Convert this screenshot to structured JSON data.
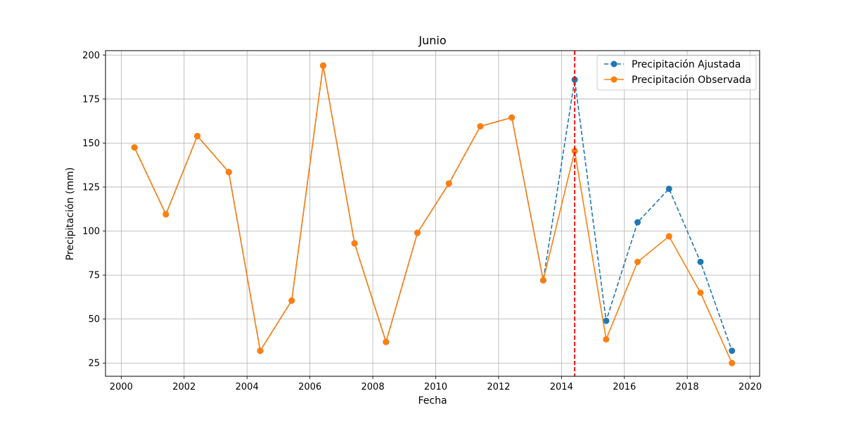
{
  "chart_data": {
    "type": "line",
    "title": "Junio",
    "xlabel": "Fecha",
    "ylabel": "Precipitación (mm)",
    "x": [
      2000.42,
      2001.42,
      2002.42,
      2003.42,
      2004.42,
      2005.42,
      2006.42,
      2007.42,
      2008.42,
      2009.42,
      2010.42,
      2011.42,
      2012.42,
      2013.42,
      2014.42,
      2015.42,
      2016.42,
      2017.42,
      2018.42,
      2019.42
    ],
    "series": [
      {
        "name": "Precipitación Ajustada",
        "color": "#1f77b4",
        "style": "dashed",
        "values": [
          147.5,
          109.5,
          154,
          133.5,
          32,
          60.5,
          194,
          93,
          37,
          99,
          127,
          159.5,
          164.5,
          72,
          186,
          49,
          105,
          124,
          82.5,
          32
        ]
      },
      {
        "name": "Precipitación Observada",
        "color": "#ff7f0e",
        "style": "solid",
        "values": [
          147.5,
          109.5,
          154,
          133.5,
          32,
          60.5,
          194,
          93,
          37,
          99,
          127,
          159.5,
          164.5,
          72,
          145.5,
          38.5,
          82.5,
          97,
          65,
          25
        ]
      }
    ],
    "vline": {
      "x": 2014.42,
      "color": "#ff0000",
      "style": "dashed"
    },
    "xlim": [
      1999.5,
      2020.3
    ],
    "ylim": [
      17.5,
      202.5
    ],
    "xticks": [
      2000,
      2002,
      2004,
      2006,
      2008,
      2010,
      2012,
      2014,
      2016,
      2018,
      2020
    ],
    "yticks": [
      25,
      50,
      75,
      100,
      125,
      150,
      175,
      200
    ],
    "grid": true,
    "legend_position": "top-right"
  }
}
